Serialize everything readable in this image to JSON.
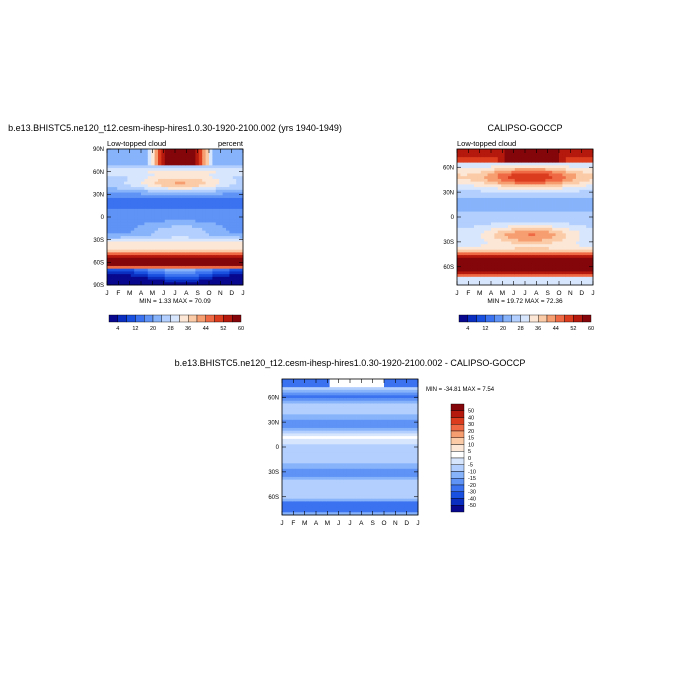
{
  "months": [
    "J",
    "F",
    "M",
    "A",
    "M",
    "J",
    "J",
    "A",
    "S",
    "O",
    "N",
    "D",
    "J"
  ],
  "lat_ticks": [
    "90N",
    "60N",
    "30N",
    "0",
    "30S",
    "60S",
    "90S"
  ],
  "panel_colors": [
    "#08088e",
    "#0a2fc0",
    "#1a50e0",
    "#3a72f0",
    "#5f93f5",
    "#87b3fb",
    "#b2cffd",
    "#d8e6fd",
    "#fce7d6",
    "#fbcaa6",
    "#f79e71",
    "#ef6a44",
    "#dc3c1e",
    "#b5180c",
    "#85060a"
  ],
  "diff_colors": [
    "#08088e",
    "#0a2fc0",
    "#1a50e0",
    "#3a72f0",
    "#5f93f5",
    "#87b3fb",
    "#b2cffd",
    "#d8e6fd",
    "#ffffff",
    "#fce7d6",
    "#fbcaa6",
    "#f79e71",
    "#ef6a44",
    "#dc3c1e",
    "#b5180c",
    "#85060a"
  ],
  "panel_levels": [
    4,
    8,
    12,
    16,
    20,
    24,
    28,
    32,
    36,
    40,
    44,
    48,
    52,
    56,
    60
  ],
  "diff_levels": [
    -50,
    -40,
    -30,
    -20,
    -15,
    -10,
    -5,
    0,
    5,
    10,
    15,
    20,
    30,
    40,
    50
  ],
  "chart_data": [
    {
      "type": "heatmap",
      "title": "b.e13.BHISTC5.ne120_t12.cesm-ihesp-hires1.0.30-1920-2100.002 (yrs 1940-1949)",
      "left_label": "Low-topped cloud",
      "right_label": "percent",
      "stats": "MIN =   1.33 MAX =  70.09",
      "min": 1.33,
      "max": 70.09,
      "ylim": [
        -90,
        90
      ],
      "colorbar_labels": [
        "4",
        "12",
        "20",
        "28",
        "36",
        "44",
        "52",
        "60"
      ]
    },
    {
      "type": "heatmap",
      "title": "CALIPSO-GOCCP",
      "left_label": "Low-topped cloud",
      "stats": "MIN =  19.72 MAX =  72.36",
      "min": 19.72,
      "max": 72.36,
      "ylim": [
        -82,
        82
      ],
      "colorbar_labels": [
        "4",
        "12",
        "20",
        "28",
        "36",
        "44",
        "52",
        "60"
      ]
    },
    {
      "type": "heatmap",
      "title": "b.e13.BHISTC5.ne120_t12.cesm-ihesp-hires1.0.30-1920-2100.002 - CALIPSO-GOCCP",
      "stats": "MIN = -34.81 MAX =   7.54",
      "min": -34.81,
      "max": 7.54,
      "ylim": [
        -82,
        82
      ],
      "colorbar_labels": [
        "50",
        "40",
        "30",
        "20",
        "15",
        "10",
        "5",
        "0",
        "-5",
        "-10",
        "-15",
        "-20",
        "-30",
        "-40",
        "-50"
      ]
    }
  ]
}
